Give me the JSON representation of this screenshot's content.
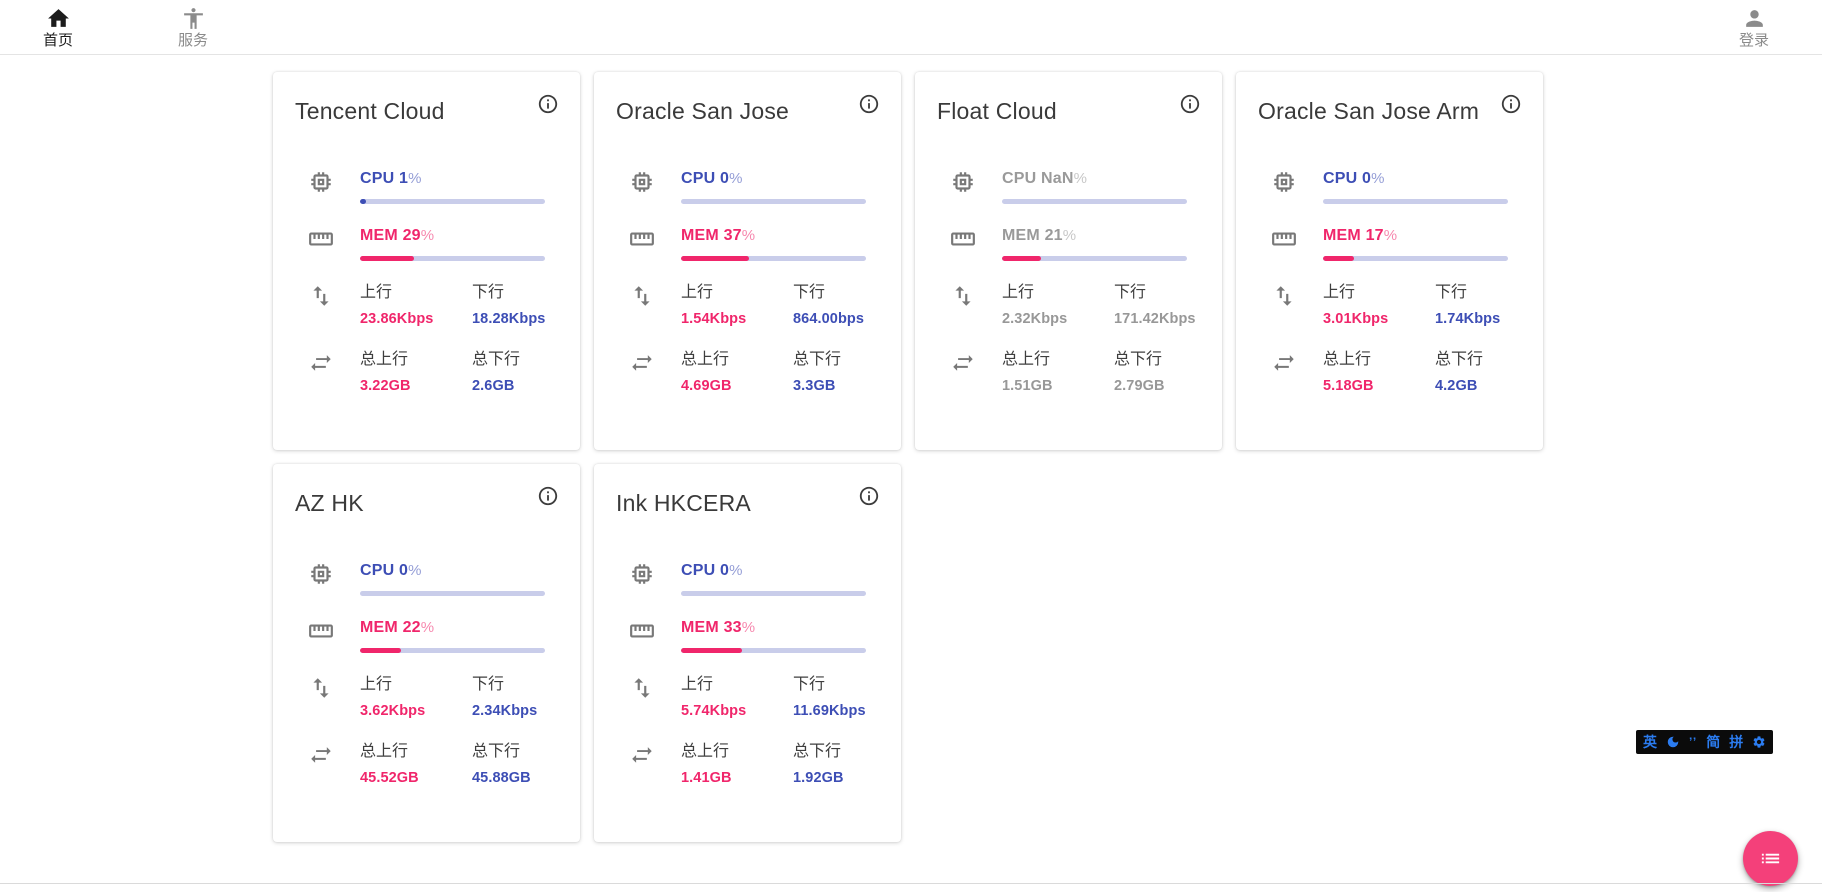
{
  "nav": {
    "home": {
      "label": "首页"
    },
    "services": {
      "label": "服务"
    },
    "login": {
      "label": "登录"
    }
  },
  "labels": {
    "upload": "上行",
    "download": "下行",
    "total_upload": "总上行",
    "total_download": "总下行"
  },
  "cards": [
    {
      "title": "Tencent Cloud",
      "cpu": {
        "text": "CPU 1",
        "pct": "%",
        "percent": 1
      },
      "mem": {
        "text": "MEM 29",
        "pct": "%",
        "percent": 29
      },
      "upload": "23.86Kbps",
      "download": "18.28Kbps",
      "total_upload": "3.22GB",
      "total_download": "2.6GB",
      "muted": false
    },
    {
      "title": "Oracle San Jose",
      "cpu": {
        "text": "CPU 0",
        "pct": "%",
        "percent": 0
      },
      "mem": {
        "text": "MEM 37",
        "pct": "%",
        "percent": 37
      },
      "upload": "1.54Kbps",
      "download": "864.00bps",
      "total_upload": "4.69GB",
      "total_download": "3.3GB",
      "muted": false
    },
    {
      "title": "Float Cloud",
      "cpu": {
        "text": "CPU NaN",
        "pct": "%",
        "percent": 0
      },
      "mem": {
        "text": "MEM 21",
        "pct": "%",
        "percent": 21
      },
      "upload": "2.32Kbps",
      "download": "171.42Kbps",
      "total_upload": "1.51GB",
      "total_download": "2.79GB",
      "muted": true
    },
    {
      "title": "Oracle San Jose Arm",
      "cpu": {
        "text": "CPU 0",
        "pct": "%",
        "percent": 0
      },
      "mem": {
        "text": "MEM 17",
        "pct": "%",
        "percent": 17
      },
      "upload": "3.01Kbps",
      "download": "1.74Kbps",
      "total_upload": "5.18GB",
      "total_download": "4.2GB",
      "muted": false
    },
    {
      "title": "AZ HK",
      "cpu": {
        "text": "CPU 0",
        "pct": "%",
        "percent": 0
      },
      "mem": {
        "text": "MEM 22",
        "pct": "%",
        "percent": 22
      },
      "upload": "3.62Kbps",
      "download": "2.34Kbps",
      "total_upload": "45.52GB",
      "total_download": "45.88GB",
      "muted": false
    },
    {
      "title": "Ink HKCERA",
      "cpu": {
        "text": "CPU 0",
        "pct": "%",
        "percent": 0
      },
      "mem": {
        "text": "MEM 33",
        "pct": "%",
        "percent": 33
      },
      "upload": "5.74Kbps",
      "download": "11.69Kbps",
      "total_upload": "1.41GB",
      "total_download": "1.92GB",
      "muted": false
    }
  ],
  "ime_toolbar": {
    "english_label": "英",
    "punctuation_label": "’’",
    "simplified_label": "简",
    "pinyin_label": "拼"
  },
  "colors": {
    "accent_indigo": "#3d4eb5",
    "accent_pink": "#f0266b",
    "muted_gray": "#989898",
    "bar_track": "#c9cdea",
    "fab_pink": "#f4407a",
    "ime_blue": "#2b7cf0"
  }
}
